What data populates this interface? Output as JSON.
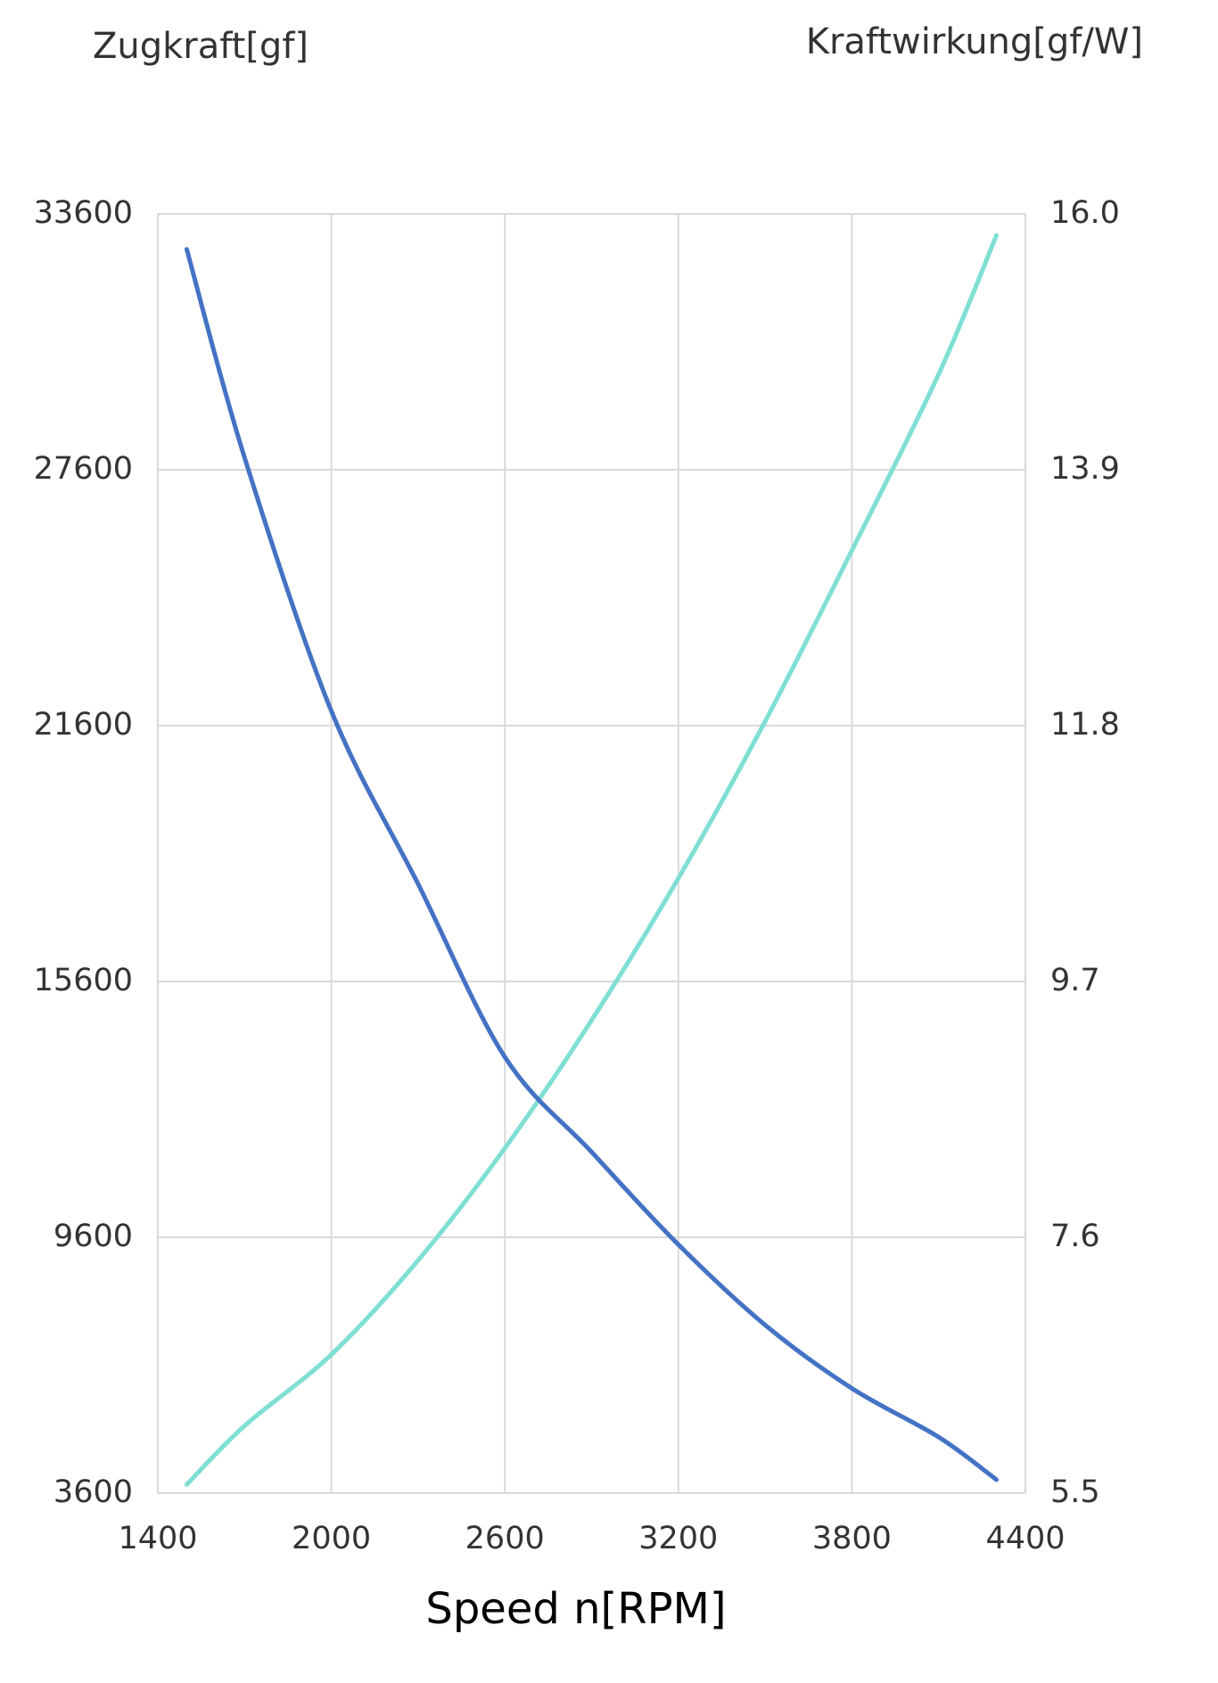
{
  "chart_data": {
    "type": "line",
    "series_title_left": "Zugkraft[gf]",
    "series_title_right": "Kraftwirkung[gf/W]",
    "xlabel": "Speed n[RPM]",
    "x": [
      1500,
      1700,
      2000,
      2300,
      2600,
      2900,
      3200,
      3500,
      3800,
      4100,
      4300
    ],
    "series": [
      {
        "name": "Zugkraft[gf]",
        "color": "#7fdfd4",
        "values": [
          3800,
          5180,
          6850,
          9060,
          11690,
          14690,
          18020,
          21700,
          25710,
          29840,
          33100
        ]
      },
      {
        "name": "Kraftwirkung[gf/W]",
        "color": "#4472c4",
        "axis": "y2",
        "values": [
          15.71,
          14.0,
          11.92,
          10.5,
          9.08,
          8.3,
          7.54,
          6.88,
          6.36,
          5.96,
          5.61
        ]
      }
    ],
    "xlim": [
      1400,
      4400
    ],
    "xticks": [
      1400,
      2000,
      2600,
      3200,
      3800,
      4400
    ],
    "ylim": [
      3600,
      33600
    ],
    "yticks": [
      3600,
      9600,
      15600,
      21600,
      27600,
      33600
    ],
    "y2lim": [
      5.5,
      16
    ],
    "y2ticks": [
      5.5,
      7.6,
      9.7,
      11.8,
      13.9,
      {
        "value": 16,
        "label": "16.0"
      }
    ],
    "grid": true
  }
}
